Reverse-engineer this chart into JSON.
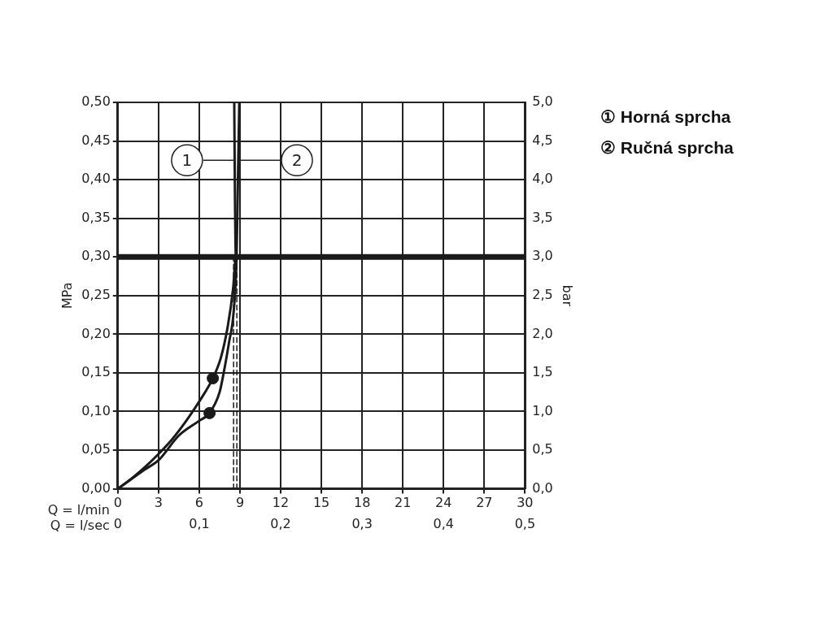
{
  "chart_data": {
    "type": "line",
    "xlabel": "Q = l/min",
    "x2label": "Q = l/sec",
    "ylabel": "MPa",
    "y2label": "bar",
    "xlim": [
      0,
      30
    ],
    "xticks": [
      0,
      3,
      6,
      9,
      12,
      15,
      18,
      21,
      24,
      27,
      30
    ],
    "x2lim": [
      0,
      0.5
    ],
    "x2ticks": [
      0,
      {
        "value": 0.1,
        "label": "0,1"
      },
      {
        "value": 0.2,
        "label": "0,2"
      },
      {
        "value": 0.3,
        "label": "0,3"
      },
      {
        "value": 0.4,
        "label": "0,4"
      },
      {
        "value": 0.5,
        "label": "0,5"
      }
    ],
    "ylim": [
      0,
      0.5
    ],
    "yticks": [
      {
        "value": 0,
        "label": "0,00"
      },
      {
        "value": 0.05,
        "label": "0,05"
      },
      {
        "value": 0.1,
        "label": "0,10"
      },
      {
        "value": 0.15,
        "label": "0,15"
      },
      {
        "value": 0.2,
        "label": "0,20"
      },
      {
        "value": 0.25,
        "label": "0,25"
      },
      {
        "value": 0.3,
        "label": "0,30"
      },
      {
        "value": 0.35,
        "label": "0,35"
      },
      {
        "value": 0.4,
        "label": "0,40"
      },
      {
        "value": 0.45,
        "label": "0,45"
      },
      {
        "value": 0.5,
        "label": "0,50"
      }
    ],
    "y2lim": [
      0,
      5
    ],
    "y2ticks": [
      {
        "value": 0,
        "label": "0,0"
      },
      {
        "value": 0.5,
        "label": "0,5"
      },
      {
        "value": 1,
        "label": "1,0"
      },
      {
        "value": 1.5,
        "label": "1,5"
      },
      {
        "value": 2,
        "label": "2,0"
      },
      {
        "value": 2.5,
        "label": "2,5"
      },
      {
        "value": 3,
        "label": "3,0"
      },
      {
        "value": 3.5,
        "label": "3,5"
      },
      {
        "value": 4,
        "label": "4,0"
      },
      {
        "value": 4.5,
        "label": "4,5"
      },
      {
        "value": 5,
        "label": "5,0"
      }
    ],
    "grid": true,
    "legend": "right",
    "marker": "none",
    "series": [
      {
        "name": "① Horná sprcha",
        "color": "#1a1a1a",
        "x": [
          0,
          1,
          2,
          3,
          4,
          5,
          6,
          7,
          7.6,
          8.1,
          8.5,
          8.7,
          8.62,
          8.58
        ],
        "values": [
          0,
          0.013,
          0.028,
          0.045,
          0.064,
          0.087,
          0.113,
          0.143,
          0.17,
          0.21,
          0.26,
          0.3,
          0.4,
          0.5
        ]
      },
      {
        "name": "② Ručná sprcha",
        "color": "#1a1a1a",
        "x": [
          0,
          2,
          3,
          4.5,
          6,
          6.76,
          7.5,
          7.8,
          8.2,
          8.53,
          8.75,
          8.85,
          8.95
        ],
        "values": [
          0,
          0.025,
          0.037,
          0.069,
          0.088,
          0.098,
          0.125,
          0.15,
          0.19,
          0.228,
          0.3,
          0.4,
          0.5
        ]
      },
      {
        "type": "scatter",
        "marker": "circle",
        "color": "#1a1a1a",
        "x": [
          7,
          6.76
        ],
        "values": [
          0.143,
          0.098
        ]
      },
      {
        "color": "#1a1a1a",
        "line_style": "dashed",
        "x": [
          8.53,
          8.53
        ],
        "values": [
          0,
          0.3
        ]
      },
      {
        "color": "#1a1a1a",
        "line_style": "dashed",
        "x": [
          8.77,
          8.77
        ],
        "values": [
          0,
          0.3
        ]
      }
    ],
    "ref_lines": [
      {
        "axis": "y",
        "value": 0.3,
        "color": "#1a1a1a"
      }
    ],
    "annotations": [
      {
        "text": "1",
        "x": 5.1,
        "y": 0.425
      },
      {
        "text": "2",
        "x": 13.2,
        "y": 0.425
      }
    ]
  }
}
